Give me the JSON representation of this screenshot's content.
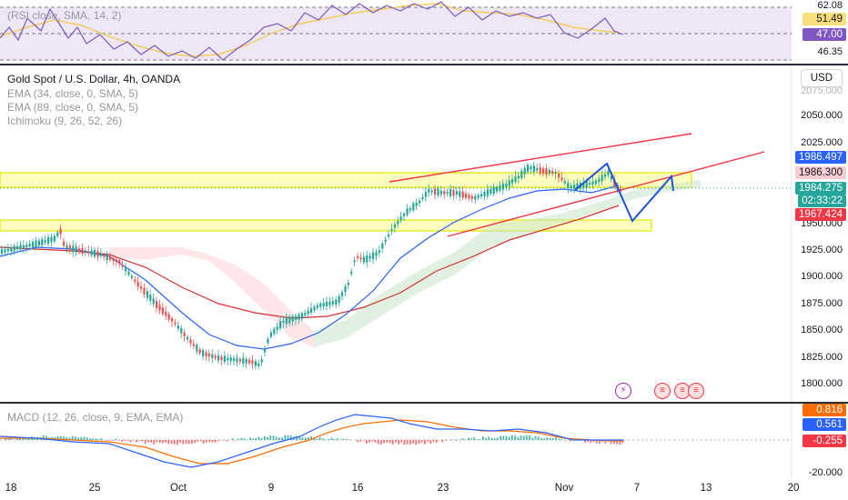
{
  "rsi": {
    "label": "(RSI close, SMA, 14, 2)",
    "ticks": [
      "62.08",
      "46.35"
    ],
    "badges": [
      "51.49",
      "47.00"
    ]
  },
  "main": {
    "title": "Gold Spot / U.S. Dollar, 4h, OANDA",
    "indicators": [
      "EMA (34, close, 0, SMA, 5)",
      "EMA (89, close, 0, SMA, 5)",
      "Ichimoku (9, 26, 52, 26)"
    ],
    "currency_button": "USD",
    "price_ticks": [
      "2075.000",
      "2050.000",
      "2025.000",
      "1950.000",
      "1925.000",
      "1900.000",
      "1875.000",
      "1850.000",
      "1825.000",
      "1800.000"
    ],
    "badges": {
      "b1": "1986.497",
      "b2": "1986.300",
      "b3": "1984.275",
      "countdown": "02:33:22",
      "b4": "1967.424"
    },
    "event_icons": [
      "lightning-icon",
      "us-flag-icon",
      "us-flag-icon",
      "us-flag-icon"
    ]
  },
  "macd": {
    "label": "MACD (12, 26, close, 9, EMA, EMA)",
    "badges": [
      "0.816",
      "0.561",
      "-0.255"
    ],
    "tick": "-20.000"
  },
  "time_axis": [
    "18",
    "25",
    "Oct",
    "9",
    "16",
    "23",
    "Nov",
    "7",
    "13",
    "20"
  ],
  "colors": {
    "up": "#26a69a",
    "down": "#ef5350",
    "ema34": "#2962ff",
    "ema89": "#d32f2f",
    "zone": "#ffff00",
    "pattern": "#1e53e5",
    "trend": "#f23645",
    "rsi_line": "#7e57c2",
    "rsi_sma": "#f5c842",
    "macd_line": "#2962ff",
    "signal_line": "#ff6d00"
  }
}
